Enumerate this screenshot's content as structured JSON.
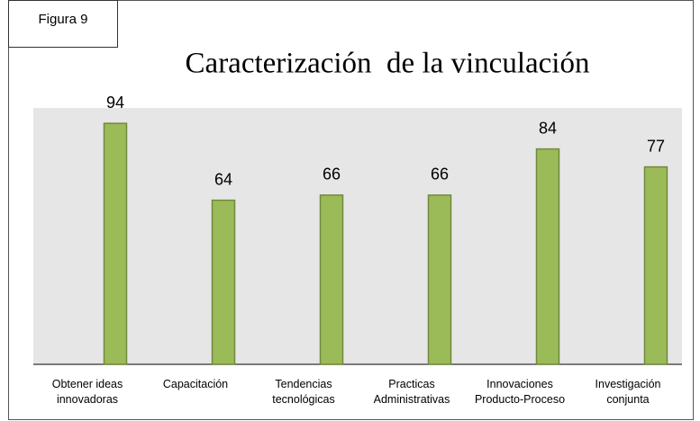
{
  "chart_data": {
    "type": "bar",
    "label": "Figura 9",
    "title": "Caracterización  de la vinculación",
    "categories": [
      [
        "Obtener ideas",
        "innovadoras"
      ],
      [
        "Capacitación"
      ],
      [
        "Tendencias",
        "tecnológicas"
      ],
      [
        "Practicas",
        "Administrativas"
      ],
      [
        "Innovaciones",
        "Producto-Proceso"
      ],
      [
        "Investigación",
        "conjunta"
      ]
    ],
    "values": [
      94,
      64,
      66,
      66,
      84,
      77
    ],
    "color": "#9bbb59",
    "ylim": [
      0,
      100
    ]
  }
}
